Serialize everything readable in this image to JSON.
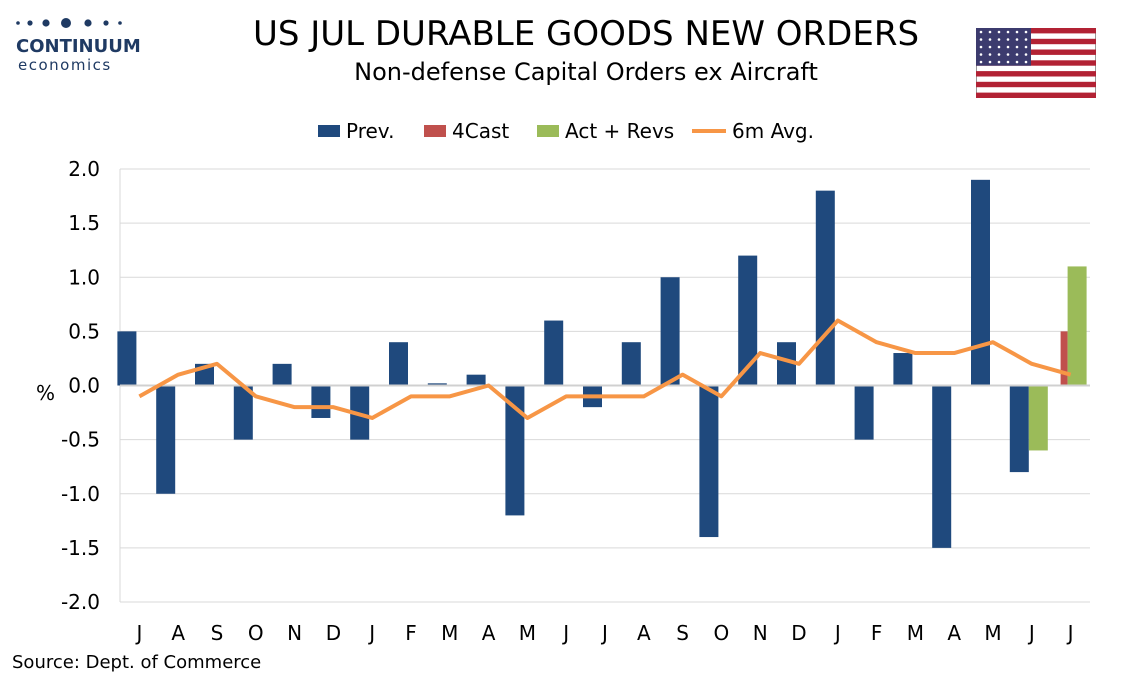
{
  "brand": {
    "name": "CONTINUUM",
    "sub": "economics"
  },
  "title": "US JUL DURABLE GOODS NEW ORDERS",
  "subtitle": "Non-defense Capital Orders ex Aircraft",
  "source": "Source: Dept. of Commerce",
  "flag_icon": "us-flag-icon",
  "colors": {
    "prev": "#1f497d",
    "forecast": "#c0504d",
    "actual": "#9bbb59",
    "avg": "#f79646",
    "grid": "#d9d9d9",
    "brand": "#1f3a63"
  },
  "chart_data": {
    "type": "bar",
    "categories": [
      "J",
      "A",
      "S",
      "O",
      "N",
      "D",
      "J",
      "F",
      "M",
      "A",
      "M",
      "J",
      "J",
      "A",
      "S",
      "O",
      "N",
      "D",
      "J",
      "F",
      "M",
      "A",
      "M",
      "J",
      "J"
    ],
    "series": [
      {
        "name": "Prev.",
        "type": "bar",
        "values": [
          0.5,
          -1.0,
          0.2,
          -0.5,
          0.2,
          -0.3,
          -0.5,
          0.4,
          0.02,
          0.1,
          -1.2,
          0.6,
          -0.2,
          0.4,
          1.0,
          -1.4,
          1.2,
          0.4,
          1.8,
          -0.5,
          0.3,
          -1.5,
          1.9,
          -0.8,
          null
        ]
      },
      {
        "name": "4Cast",
        "type": "bar",
        "values": [
          null,
          null,
          null,
          null,
          null,
          null,
          null,
          null,
          null,
          null,
          null,
          null,
          null,
          null,
          null,
          null,
          null,
          null,
          null,
          null,
          null,
          null,
          null,
          null,
          0.5
        ]
      },
      {
        "name": "Act + Revs",
        "type": "bar",
        "values": [
          null,
          null,
          null,
          null,
          null,
          null,
          null,
          null,
          null,
          null,
          null,
          null,
          null,
          null,
          null,
          null,
          null,
          null,
          null,
          null,
          null,
          null,
          null,
          -0.6,
          1.1
        ]
      },
      {
        "name": "6m Avg.",
        "type": "line",
        "values": [
          -0.1,
          0.1,
          0.2,
          -0.1,
          -0.2,
          -0.2,
          -0.3,
          -0.1,
          -0.1,
          0.0,
          -0.3,
          -0.1,
          -0.1,
          -0.1,
          0.1,
          -0.1,
          0.3,
          0.2,
          0.6,
          0.4,
          0.3,
          0.3,
          0.4,
          0.2,
          0.1
        ]
      }
    ],
    "ylabel": "%",
    "ylim": [
      -2.0,
      2.0
    ],
    "yticks": [
      "2.0",
      "1.5",
      "1.0",
      "0.5",
      "0.0",
      "-0.5",
      "-1.0",
      "-1.5",
      "-2.0"
    ],
    "ytick_values": [
      2.0,
      1.5,
      1.0,
      0.5,
      0.0,
      -0.5,
      -1.0,
      -1.5,
      -2.0
    ],
    "grid": true,
    "legend": "top-center"
  }
}
